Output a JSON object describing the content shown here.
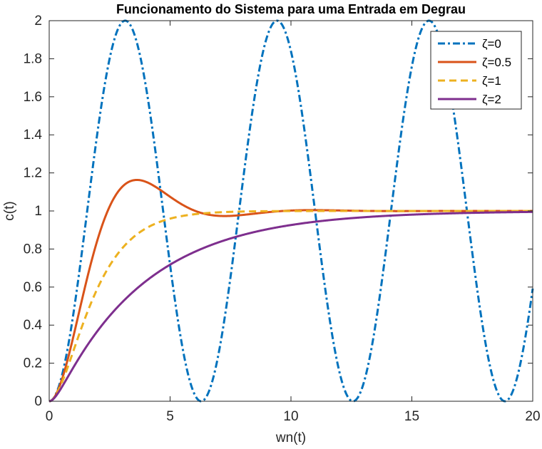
{
  "chart_data": {
    "type": "line",
    "title": "Funcionamento do Sistema para uma Entrada em Degrau",
    "xlabel": "wn(t)",
    "ylabel": "c(t)",
    "xlim": [
      0,
      20
    ],
    "ylim": [
      0,
      2
    ],
    "xticks": [
      0,
      5,
      10,
      15,
      20
    ],
    "xtick_labels": [
      "0",
      "5",
      "10",
      "15",
      "20"
    ],
    "yticks": [
      0,
      0.2,
      0.4,
      0.6,
      0.8,
      1,
      1.2,
      1.4,
      1.6,
      1.8,
      2
    ],
    "ytick_labels": [
      "0",
      "0.2",
      "0.4",
      "0.6",
      "0.8",
      "1",
      "1.2",
      "1.4",
      "1.6",
      "1.8",
      "2"
    ],
    "grid": false,
    "box": true,
    "legend_position": "top-right",
    "series": [
      {
        "name": "ζ=0",
        "zeta": 0,
        "color": "#0072BD",
        "line_style": "dash-dot"
      },
      {
        "name": "ζ=0.5",
        "zeta": 0.5,
        "color": "#D95319",
        "line_style": "solid"
      },
      {
        "name": "ζ=1",
        "zeta": 1,
        "color": "#EDB120",
        "line_style": "dashed"
      },
      {
        "name": "ζ=2",
        "zeta": 2,
        "color": "#7E2F8E",
        "line_style": "solid"
      }
    ]
  }
}
